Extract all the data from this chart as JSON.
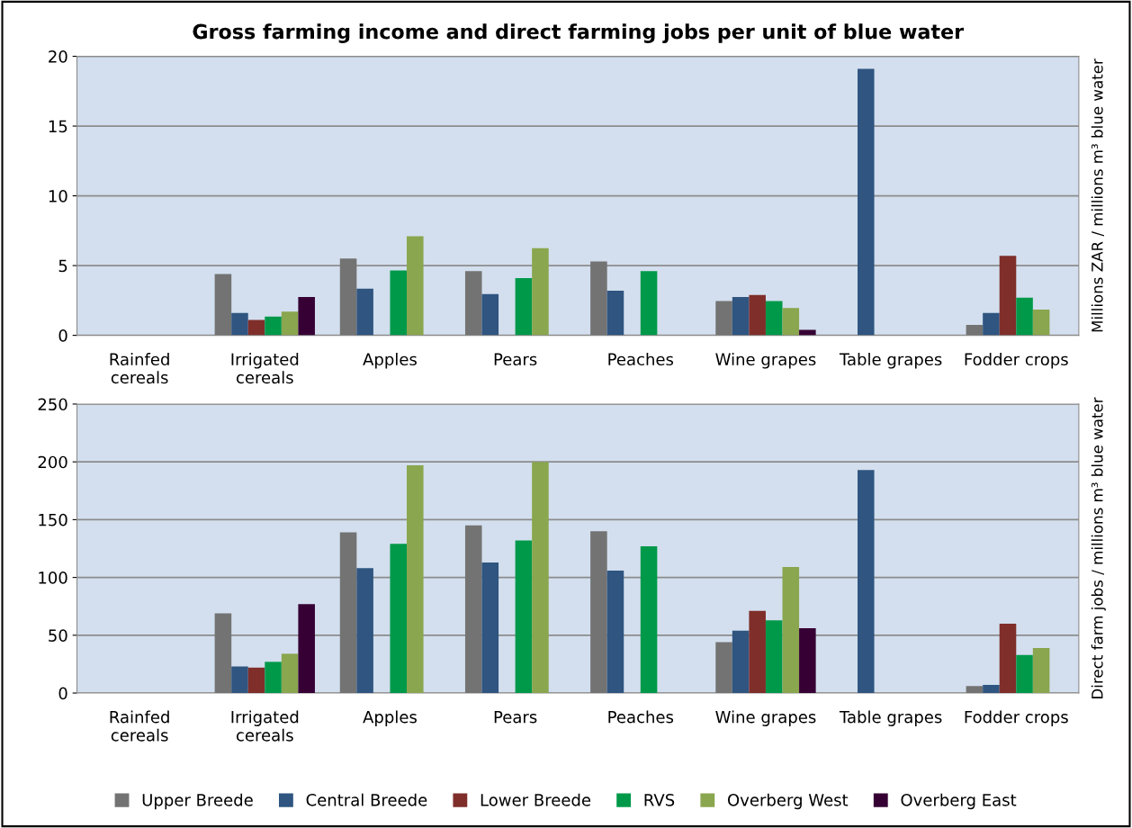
{
  "chart_data": [
    {
      "type": "bar",
      "title": "Gross farming income and direct farming jobs per unit of blue water",
      "ylabel": "Millions ZAR / millions m³ blue water",
      "categories": [
        "Rainfed\ncereals",
        "Irrigated\ncereals",
        "Apples",
        "Pears",
        "Peaches",
        "Wine grapes",
        "Table grapes",
        "Fodder crops"
      ],
      "series": [
        {
          "color": "#737373",
          "values": [
            null,
            4.4,
            5.5,
            4.6,
            5.3,
            2.45,
            null,
            0.75
          ]
        },
        {
          "color": "#2f5580",
          "values": [
            null,
            1.6,
            3.35,
            2.95,
            3.2,
            2.75,
            19.1,
            1.6
          ]
        },
        {
          "color": "#7f2e2a",
          "values": [
            null,
            1.1,
            null,
            null,
            null,
            2.9,
            null,
            5.7
          ]
        },
        {
          "color": "#00994a",
          "values": [
            null,
            1.35,
            4.65,
            4.1,
            4.6,
            2.45,
            null,
            2.7
          ]
        },
        {
          "color": "#8aa64e",
          "values": [
            null,
            1.7,
            7.1,
            6.25,
            null,
            1.95,
            null,
            1.85
          ]
        },
        {
          "color": "#360034",
          "values": [
            null,
            2.75,
            null,
            null,
            null,
            0.4,
            null,
            null
          ]
        }
      ],
      "ylim": [
        0,
        20
      ],
      "yticks": [
        0,
        5,
        10,
        15,
        20
      ],
      "grid": "y"
    },
    {
      "type": "bar",
      "ylabel": "Direct farm jobs / millions m³ blue water",
      "categories": [
        "Rainfed\ncereals",
        "Irrigated\ncereals",
        "Apples",
        "Pears",
        "Peaches",
        "Wine grapes",
        "Table grapes",
        "Fodder crops"
      ],
      "series": [
        {
          "name": "Upper Breede",
          "color": "#737373",
          "values": [
            null,
            69,
            139,
            145,
            140,
            44,
            null,
            6
          ]
        },
        {
          "name": "Central Breede",
          "color": "#2f5580",
          "values": [
            null,
            23,
            108,
            113,
            106,
            54,
            193,
            7
          ]
        },
        {
          "name": "Lower Breede",
          "color": "#7f2e2a",
          "values": [
            null,
            22,
            null,
            null,
            null,
            71,
            null,
            60
          ]
        },
        {
          "name": "RVS",
          "color": "#00994a",
          "values": [
            null,
            27,
            129,
            132,
            127,
            63,
            null,
            33
          ]
        },
        {
          "name": "Overberg West",
          "color": "#8aa64e",
          "values": [
            null,
            34,
            197,
            200,
            null,
            109,
            null,
            39
          ]
        },
        {
          "name": "Overberg East",
          "color": "#360034",
          "values": [
            null,
            77,
            null,
            null,
            null,
            56,
            null,
            null
          ]
        }
      ],
      "ylim": [
        0,
        250
      ],
      "yticks": [
        0,
        50,
        100,
        150,
        200,
        250
      ],
      "grid": "y",
      "legend": "bottom"
    }
  ]
}
